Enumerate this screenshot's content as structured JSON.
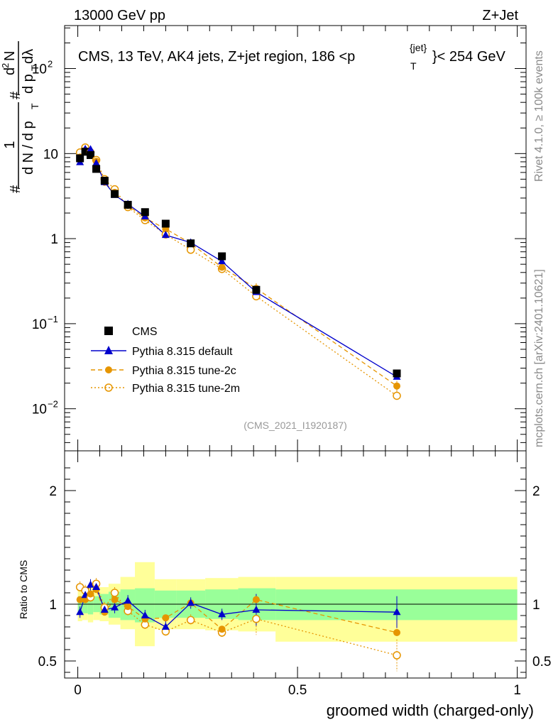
{
  "header": {
    "left": "13000 GeV pp",
    "right": "Z+Jet"
  },
  "side": {
    "rivet": "Rivet 4.1.0, ≥ 100k events",
    "mcplots": "mcplots.cern.ch [arXiv:2401.10621]"
  },
  "title": {
    "main": "CMS, 13 TeV, AK4 jets, Z+jet region, 186 <p",
    "sup": "{jet}",
    "sub": "T",
    "tail": "}< 254 GeV"
  },
  "ylabel_main": {
    "hash1": "#",
    "frac_num": "1",
    "frac_den": "d N / d p",
    "frac_den_sub": "T",
    "hash2": "#",
    "num2": "d",
    "num2_sup": "2",
    "num2_tail": "N",
    "den2": "d p",
    "den2_sub": "T",
    "den2_tail": " dλ"
  },
  "ylabel_ratio": "Ratio to CMS",
  "xlabel": "groomed width (charged-only)",
  "watermark": "(CMS_2021_I1920187)",
  "colors": {
    "cms": "#000000",
    "default": "#0000cc",
    "tune2c": "#e69500",
    "tune2m": "#e69500",
    "band_green": "#99ff99",
    "band_yellow": "#ffff99"
  },
  "chart_data": {
    "type": "scatter",
    "title": "CMS, 13 TeV, AK4 jets, Z+jet region, 186 < pT(jet) < 254 GeV",
    "xlabel": "groomed width (charged-only)",
    "ylabel": "1/N dN/dλ",
    "xlim": [
      -0.03,
      1.02
    ],
    "ylim": [
      0.0032,
      320
    ],
    "yscale": "log",
    "xticks": [
      0,
      0.5,
      1
    ],
    "xtick_labels": [
      "0",
      "0.5",
      "1"
    ],
    "yticks": [
      0.01,
      0.1,
      1,
      10,
      100
    ],
    "ytick_labels": [
      "10^-2",
      "10^-1",
      "1",
      "10",
      "10^2"
    ],
    "x": [
      0.005,
      0.017,
      0.029,
      0.042,
      0.061,
      0.084,
      0.114,
      0.153,
      0.2,
      0.257,
      0.328,
      0.406,
      0.726
    ],
    "series": [
      {
        "name": "CMS",
        "marker": "square",
        "values": [
          8.8,
          10.5,
          9.6,
          6.6,
          4.8,
          3.35,
          2.5,
          2.05,
          1.5,
          0.88,
          0.62,
          0.25,
          0.026
        ]
      },
      {
        "name": "Pythia 8.315 default",
        "marker": "triangle",
        "line": "solid",
        "values": [
          7.9,
          11.3,
          11.2,
          7.7,
          4.6,
          3.25,
          2.55,
          1.82,
          1.1,
          0.9,
          0.54,
          0.235,
          0.0237
        ]
      },
      {
        "name": "Pythia 8.315 tune-2c",
        "marker": "circle",
        "line": "dashed",
        "values": [
          9.1,
          10.9,
          10.5,
          8.1,
          4.6,
          3.5,
          2.45,
          1.75,
          1.3,
          0.88,
          0.46,
          0.26,
          0.0185
        ]
      },
      {
        "name": "Pythia 8.315 tune-2m",
        "marker": "open-circle",
        "line": "dotted",
        "values": [
          10.3,
          11.8,
          10.3,
          8.4,
          5.0,
          3.8,
          2.35,
          1.65,
          1.12,
          0.74,
          0.44,
          0.21,
          0.0142
        ]
      }
    ],
    "ratio": {
      "ylabel": "Ratio to CMS",
      "ylim": [
        0.35,
        2.35
      ],
      "yticks": [
        0.5,
        1,
        2
      ],
      "ytick_labels": [
        "0.5",
        "1",
        "2"
      ],
      "x_edges": [
        0,
        0.01,
        0.023,
        0.035,
        0.05,
        0.07,
        0.097,
        0.13,
        0.175,
        0.225,
        0.29,
        0.365,
        0.45,
        1.0
      ],
      "band_green_lo": [
        0.93,
        0.92,
        0.91,
        0.93,
        0.91,
        0.88,
        0.86,
        0.84,
        0.88,
        0.88,
        0.87,
        0.86,
        0.86
      ],
      "band_green_hi": [
        1.07,
        1.07,
        1.08,
        1.07,
        1.09,
        1.11,
        1.13,
        1.14,
        1.12,
        1.12,
        1.13,
        1.14,
        1.13
      ],
      "band_yellow_lo": [
        0.85,
        0.86,
        0.84,
        0.86,
        0.85,
        0.82,
        0.78,
        0.63,
        0.78,
        0.78,
        0.77,
        0.76,
        0.67
      ],
      "band_yellow_hi": [
        1.15,
        1.14,
        1.16,
        1.14,
        1.15,
        1.18,
        1.24,
        1.37,
        1.22,
        1.22,
        1.23,
        1.24,
        1.24
      ],
      "series": [
        {
          "name": "Pythia 8.315 default",
          "values": [
            0.93,
            1.08,
            1.17,
            1.15,
            0.95,
            0.97,
            1.03,
            0.9,
            0.8,
            1.01,
            0.91,
            0.95,
            0.93
          ]
        },
        {
          "name": "Pythia 8.315 tune-2c",
          "values": [
            1.04,
            1.04,
            1.09,
            1.13,
            0.93,
            1.04,
            0.98,
            0.87,
            0.88,
            1.01,
            0.78,
            1.04,
            0.75
          ]
        },
        {
          "name": "Pythia 8.315 tune-2m",
          "values": [
            1.15,
            1.12,
            1.06,
            1.18,
            0.97,
            1.1,
            0.94,
            0.82,
            0.76,
            0.86,
            0.75,
            0.87,
            0.55
          ]
        }
      ]
    }
  }
}
